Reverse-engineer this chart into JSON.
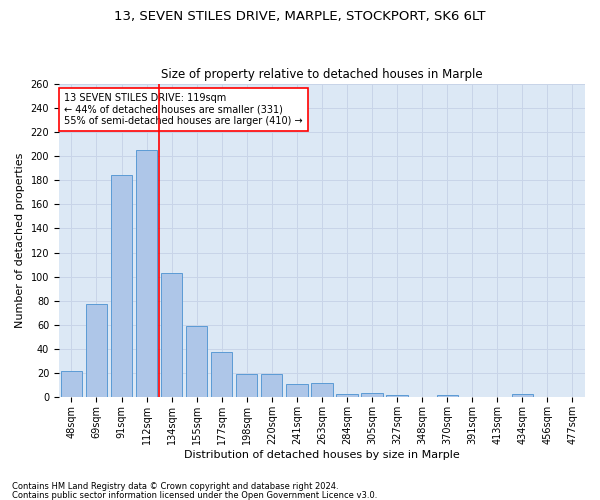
{
  "title": "13, SEVEN STILES DRIVE, MARPLE, STOCKPORT, SK6 6LT",
  "subtitle": "Size of property relative to detached houses in Marple",
  "xlabel": "Distribution of detached houses by size in Marple",
  "ylabel": "Number of detached properties",
  "bar_labels": [
    "48sqm",
    "69sqm",
    "91sqm",
    "112sqm",
    "134sqm",
    "155sqm",
    "177sqm",
    "198sqm",
    "220sqm",
    "241sqm",
    "263sqm",
    "284sqm",
    "305sqm",
    "327sqm",
    "348sqm",
    "370sqm",
    "391sqm",
    "413sqm",
    "434sqm",
    "456sqm",
    "477sqm"
  ],
  "bar_values": [
    22,
    77,
    184,
    205,
    103,
    59,
    38,
    19,
    19,
    11,
    12,
    3,
    4,
    2,
    0,
    2,
    0,
    0,
    3,
    0,
    0
  ],
  "bar_color": "#aec6e8",
  "bar_edge_color": "#5b9bd5",
  "vline_color": "red",
  "annotation_text": "13 SEVEN STILES DRIVE: 119sqm\n← 44% of detached houses are smaller (331)\n55% of semi-detached houses are larger (410) →",
  "annotation_box_color": "white",
  "annotation_box_edge": "red",
  "ylim": [
    0,
    260
  ],
  "yticks": [
    0,
    20,
    40,
    60,
    80,
    100,
    120,
    140,
    160,
    180,
    200,
    220,
    240,
    260
  ],
  "grid_color": "#c8d4e8",
  "bg_color": "#dce8f5",
  "footer_line1": "Contains HM Land Registry data © Crown copyright and database right 2024.",
  "footer_line2": "Contains public sector information licensed under the Open Government Licence v3.0.",
  "title_fontsize": 9.5,
  "subtitle_fontsize": 8.5,
  "axis_label_fontsize": 8,
  "tick_fontsize": 7,
  "annotation_fontsize": 7
}
